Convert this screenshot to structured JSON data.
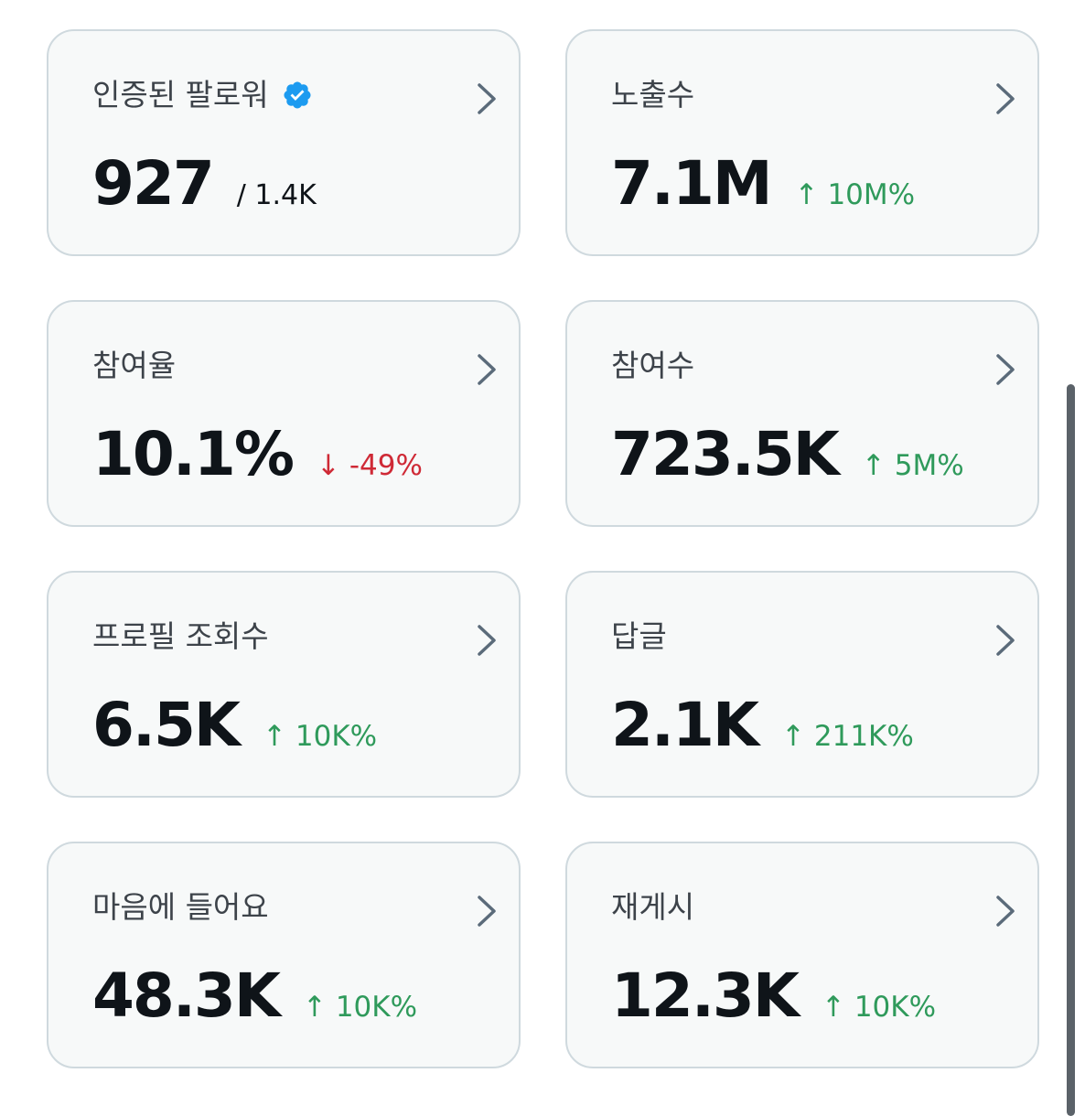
{
  "accent_color": "#1d9bf0",
  "cards": [
    {
      "title": "인증된 팔로워",
      "value": "927",
      "sub": "/ 1.4K",
      "delta": "",
      "verified_icon": "verified-badge-icon"
    },
    {
      "title": "노출수",
      "value": "7.1M",
      "sub": "",
      "delta": "↑ 10M%",
      "trend": "up"
    },
    {
      "title": "참여율",
      "value": "10.1%",
      "sub": "",
      "delta": "↓ -49%",
      "trend": "down"
    },
    {
      "title": "참여수",
      "value": "723.5K",
      "sub": "",
      "delta": "↑ 5M%",
      "trend": "up"
    },
    {
      "title": "프로필 조회수",
      "value": "6.5K",
      "sub": "",
      "delta": "↑ 10K%",
      "trend": "up"
    },
    {
      "title": "답글",
      "value": "2.1K",
      "sub": "",
      "delta": "↑ 211K%",
      "trend": "up"
    },
    {
      "title": "마음에 들어요",
      "value": "48.3K",
      "sub": "",
      "delta": "↑ 10K%",
      "trend": "up"
    },
    {
      "title": "재게시",
      "value": "12.3K",
      "sub": "",
      "delta": "↑ 10K%",
      "trend": "up"
    }
  ]
}
